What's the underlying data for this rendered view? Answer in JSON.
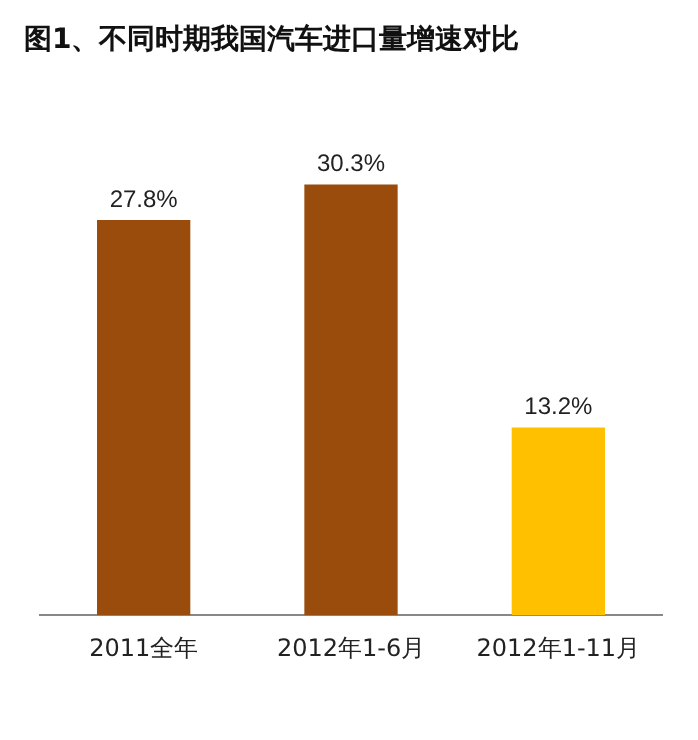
{
  "chart_data": {
    "type": "bar",
    "title": "图1、不同时期我国汽车进口量增速对比",
    "categories": [
      "2011全年",
      "2012年1-6月",
      "2012年1-11月"
    ],
    "values": [
      27.8,
      30.3,
      13.2
    ],
    "colors": [
      "#994c0c",
      "#994c0c",
      "#ffc000"
    ],
    "value_labels": [
      "27.8%",
      "30.3%",
      "13.2%"
    ],
    "relative": false,
    "grid": false,
    "legend": false
  }
}
